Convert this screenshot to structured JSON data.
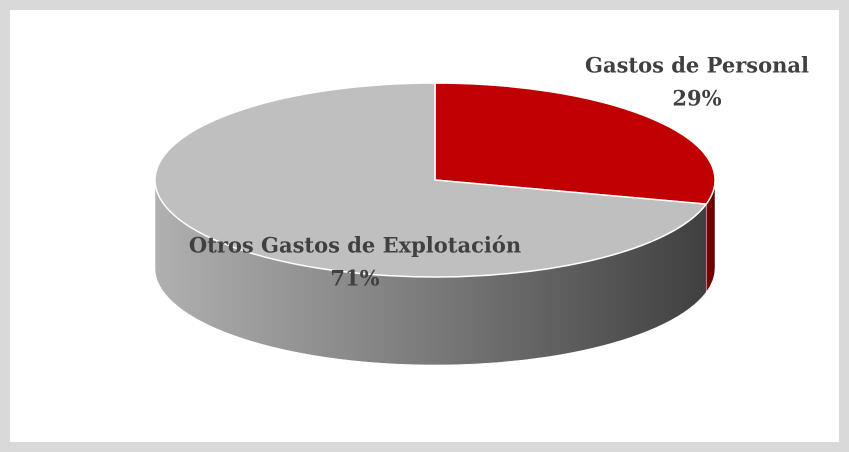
{
  "chart_data": {
    "type": "pie",
    "categories": [
      "Gastos de Personal",
      "Otros Gastos de Explotación"
    ],
    "values": [
      29,
      71
    ],
    "value_labels": [
      "29%",
      "71%"
    ],
    "colors": [
      "#c00000",
      "#bfbfbf"
    ]
  }
}
